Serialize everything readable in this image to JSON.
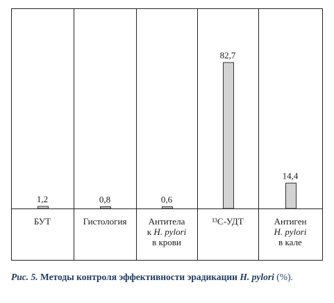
{
  "chart_data": {
    "type": "bar",
    "categories": [
      [
        "БУТ"
      ],
      [
        "Гистология"
      ],
      [
        "Антитела",
        "к H. pylori",
        "в крови"
      ],
      [
        "¹³С-УДТ"
      ],
      [
        "Антиген",
        "H. pylori",
        "в кале"
      ]
    ],
    "values": [
      1.2,
      0.8,
      0.6,
      82.7,
      14.4
    ],
    "value_labels": [
      "1,2",
      "0,8",
      "0,6",
      "82,7",
      "14,4"
    ],
    "ylim": [
      0,
      100
    ],
    "bar_color": "#d3d3d3",
    "bar_stroke": "#333333",
    "grid": false,
    "legend": "none"
  },
  "caption": {
    "label": "Рис. 5.",
    "text": "Методы контроля эффективности эрадикации",
    "species": "H. pylori",
    "unit": "(%)."
  }
}
